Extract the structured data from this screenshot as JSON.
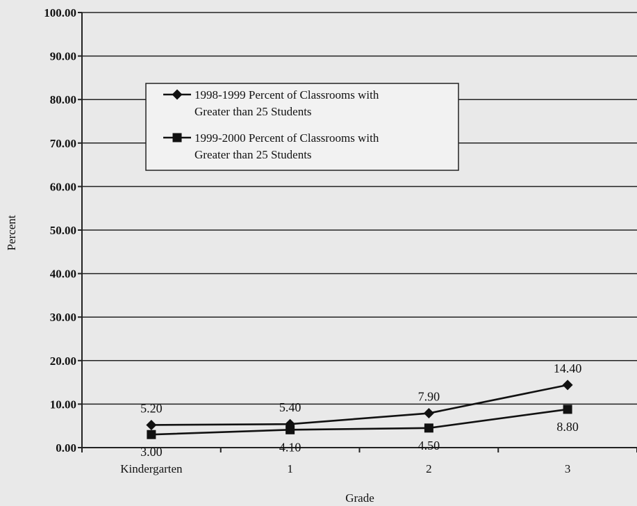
{
  "chart_data": {
    "type": "line",
    "xlabel": "Grade",
    "ylabel": "Percent",
    "categories": [
      "Kindergarten",
      "1",
      "2",
      "3"
    ],
    "ylim": [
      0,
      100
    ],
    "y_ticks": [
      "0.00",
      "10.00",
      "20.00",
      "30.00",
      "40.00",
      "50.00",
      "60.00",
      "70.00",
      "80.00",
      "90.00",
      "100.00"
    ],
    "grid": true,
    "legend_position": "upper-left",
    "series": [
      {
        "name": "1998-1999 Percent of Classrooms with Greater than 25 Students",
        "name_lines": [
          "1998-1999 Percent of Classrooms with",
          "Greater than 25 Students"
        ],
        "marker": "diamond",
        "values": [
          5.2,
          5.4,
          7.9,
          14.4
        ],
        "labels": [
          "5.20",
          "5.40",
          "7.90",
          "14.40"
        ]
      },
      {
        "name": "1999-2000 Percent of Classrooms with Greater than 25 Students",
        "name_lines": [
          "1999-2000 Percent of Classrooms with",
          "Greater than 25 Students"
        ],
        "marker": "square",
        "values": [
          3.0,
          4.1,
          4.5,
          8.8
        ],
        "labels": [
          "3.00",
          "4.10",
          "4.50",
          "8.80"
        ]
      }
    ],
    "colors": {
      "line": "#111111",
      "background": "#e9e9e9",
      "grid": "#222222"
    }
  }
}
